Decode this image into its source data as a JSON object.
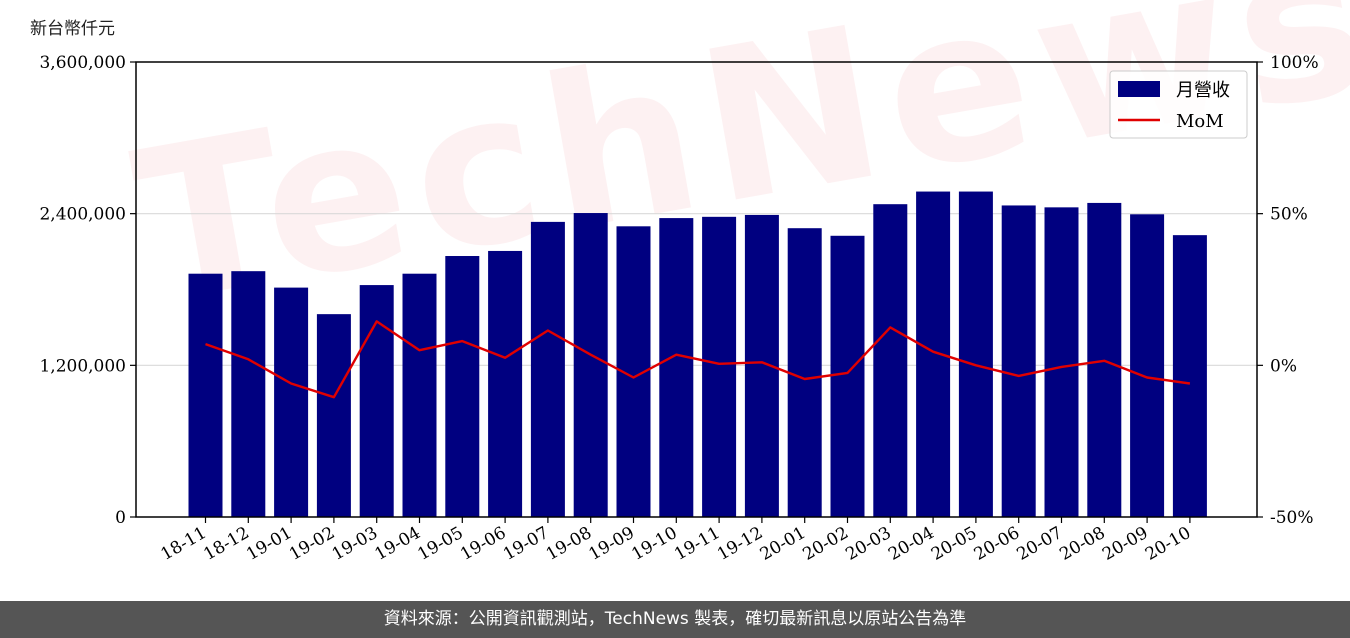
{
  "unit_label": "新台幣仟元",
  "footer_text": "資料來源：公開資訊觀測站，TechNews 製表，確切最新訊息以原站公告為準",
  "watermark_text": "TechNews",
  "colors": {
    "bar": "#000080",
    "line": "#e00000",
    "grid": "#d9d9d9",
    "footer_bg": "#555555"
  },
  "chart_data": {
    "type": "bar",
    "categories": [
      "18-11",
      "18-12",
      "19-01",
      "19-02",
      "19-03",
      "19-04",
      "19-05",
      "19-06",
      "19-07",
      "19-08",
      "19-09",
      "19-10",
      "19-11",
      "19-12",
      "20-01",
      "20-02",
      "20-03",
      "20-04",
      "20-05",
      "20-06",
      "20-07",
      "20-08",
      "20-09",
      "20-10"
    ],
    "series": [
      {
        "name": "月營收",
        "axis": "left",
        "type": "bar",
        "values": [
          1925000,
          1945000,
          1815000,
          1605000,
          1835000,
          1925000,
          2065000,
          2105000,
          2335000,
          2405000,
          2300000,
          2365000,
          2375000,
          2390000,
          2285000,
          2225000,
          2475000,
          2575000,
          2575000,
          2465000,
          2450000,
          2485000,
          2395000,
          2230000
        ]
      },
      {
        "name": "MoM",
        "axis": "right",
        "type": "line",
        "values": [
          7,
          2,
          -6,
          -10.5,
          14.5,
          5,
          8,
          2.5,
          11.5,
          3.5,
          -4,
          3.5,
          0.5,
          1,
          -4.5,
          -2.5,
          12.5,
          4.5,
          0,
          -3.5,
          -0.5,
          1.5,
          -4,
          -6
        ]
      }
    ],
    "left_axis": {
      "ylim": [
        0,
        3600000
      ],
      "ticks": [
        "0",
        "1,200,000",
        "2,400,000",
        "3,600,000"
      ],
      "tick_values": [
        0,
        1200000,
        2400000,
        3600000
      ]
    },
    "right_axis": {
      "ylim": [
        -50,
        100
      ],
      "ticks": [
        "-50%",
        "0%",
        "50%",
        "100%"
      ],
      "tick_values": [
        -50,
        0,
        50,
        100
      ]
    },
    "grid": true,
    "legend_position": "top-right"
  }
}
